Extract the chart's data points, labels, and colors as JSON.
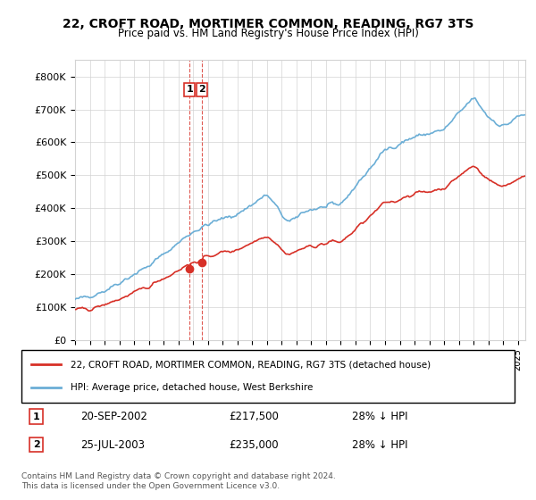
{
  "title": "22, CROFT ROAD, MORTIMER COMMON, READING, RG7 3TS",
  "subtitle": "Price paid vs. HM Land Registry's House Price Index (HPI)",
  "legend_line1": "22, CROFT ROAD, MORTIMER COMMON, READING, RG7 3TS (detached house)",
  "legend_line2": "HPI: Average price, detached house, West Berkshire",
  "sale1_date": "20-SEP-2002",
  "sale1_price": 217500,
  "sale1_hpi": "28% ↓ HPI",
  "sale1_label": "1",
  "sale2_date": "25-JUL-2003",
  "sale2_price": 235000,
  "sale2_hpi": "28% ↓ HPI",
  "sale2_label": "2",
  "footer1": "Contains HM Land Registry data © Crown copyright and database right 2024.",
  "footer2": "This data is licensed under the Open Government Licence v3.0.",
  "hpi_color": "#6baed6",
  "price_color": "#d73027",
  "marker_color": "#d73027",
  "vline_color": "#d73027",
  "ylim_max": 850000,
  "ylim_min": 0,
  "xlabel": "",
  "ylabel": ""
}
